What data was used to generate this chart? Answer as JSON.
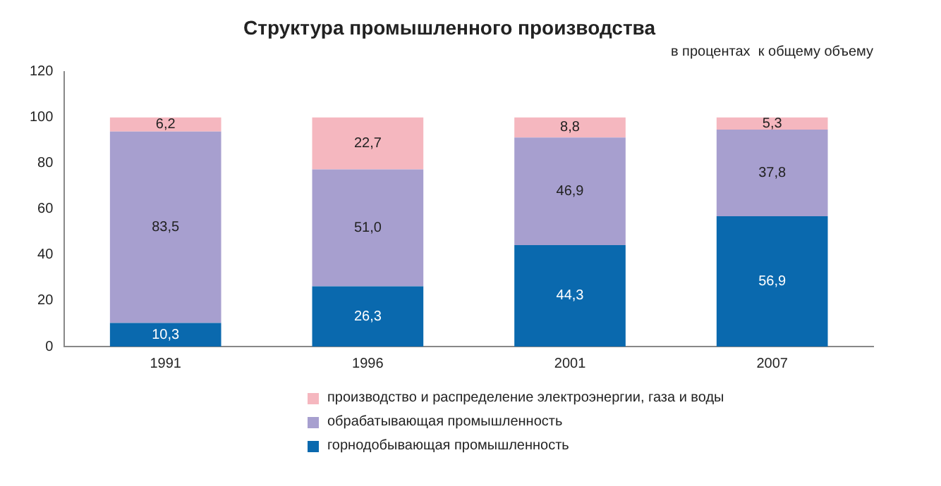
{
  "chart_data": {
    "type": "bar",
    "title": "Структура промышленного производства",
    "subtitle": "в процентах  к общему объему",
    "categories": [
      "1991",
      "1996",
      "2001",
      "2007"
    ],
    "stacked": true,
    "legend": "bottom",
    "ylim": [
      0,
      120
    ],
    "yticks": [
      0,
      20,
      40,
      60,
      80,
      100,
      120
    ],
    "grid": false,
    "series": [
      {
        "name": "горнодобывающая промышленность",
        "color": "#0a69ae",
        "values": [
          10.3,
          26.3,
          44.3,
          56.9
        ],
        "value_labels": [
          "10,3",
          "26,3",
          "44,3",
          "56,9"
        ]
      },
      {
        "name": "обрабатывающая промышленность",
        "color": "#a79fcf",
        "values": [
          83.5,
          51.0,
          46.9,
          37.8
        ],
        "value_labels": [
          "83,5",
          "51,0",
          "46,9",
          "37,8"
        ]
      },
      {
        "name": "производство и распределение электроэнергии, газа и воды",
        "color": "#f5b7bf",
        "values": [
          6.2,
          22.7,
          8.8,
          5.3
        ],
        "value_labels": [
          "6,2",
          "22,7",
          "8,8",
          "5,3"
        ]
      }
    ]
  }
}
